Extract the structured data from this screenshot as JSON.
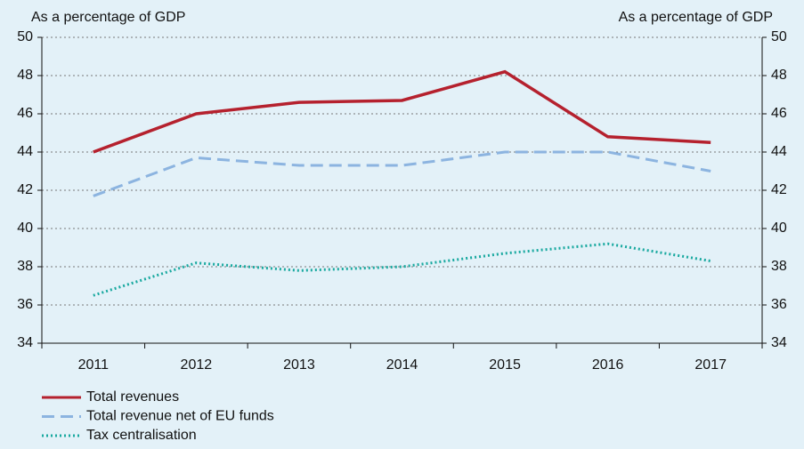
{
  "chart_data": {
    "type": "line",
    "y_label": "As a percentage of GDP",
    "y2_label": "As a percentage of GDP",
    "categories": [
      "2011",
      "2012",
      "2013",
      "2014",
      "2015",
      "2016",
      "2017"
    ],
    "series": [
      {
        "name": "Total revenues",
        "color": "#b5212e",
        "style": "solid",
        "values": [
          44.0,
          46.0,
          46.6,
          46.7,
          48.2,
          44.8,
          44.5
        ]
      },
      {
        "name": "Total revenue net of EU funds",
        "color": "#8cb4e0",
        "style": "dashed",
        "values": [
          41.7,
          43.7,
          43.3,
          43.3,
          44.0,
          44.0,
          43.0
        ]
      },
      {
        "name": "Tax centralisation",
        "color": "#1aa9a0",
        "style": "dotted",
        "values": [
          36.5,
          38.2,
          37.8,
          38.0,
          38.7,
          39.2,
          38.3
        ]
      }
    ],
    "ylim": [
      34,
      50
    ],
    "yticks": [
      34,
      36,
      38,
      40,
      42,
      44,
      46,
      48,
      50
    ],
    "y2lim": [
      34,
      50
    ],
    "y2ticks": [
      34,
      36,
      38,
      40,
      42,
      44,
      46,
      48,
      50
    ],
    "grid": true,
    "legend": "bottom"
  }
}
